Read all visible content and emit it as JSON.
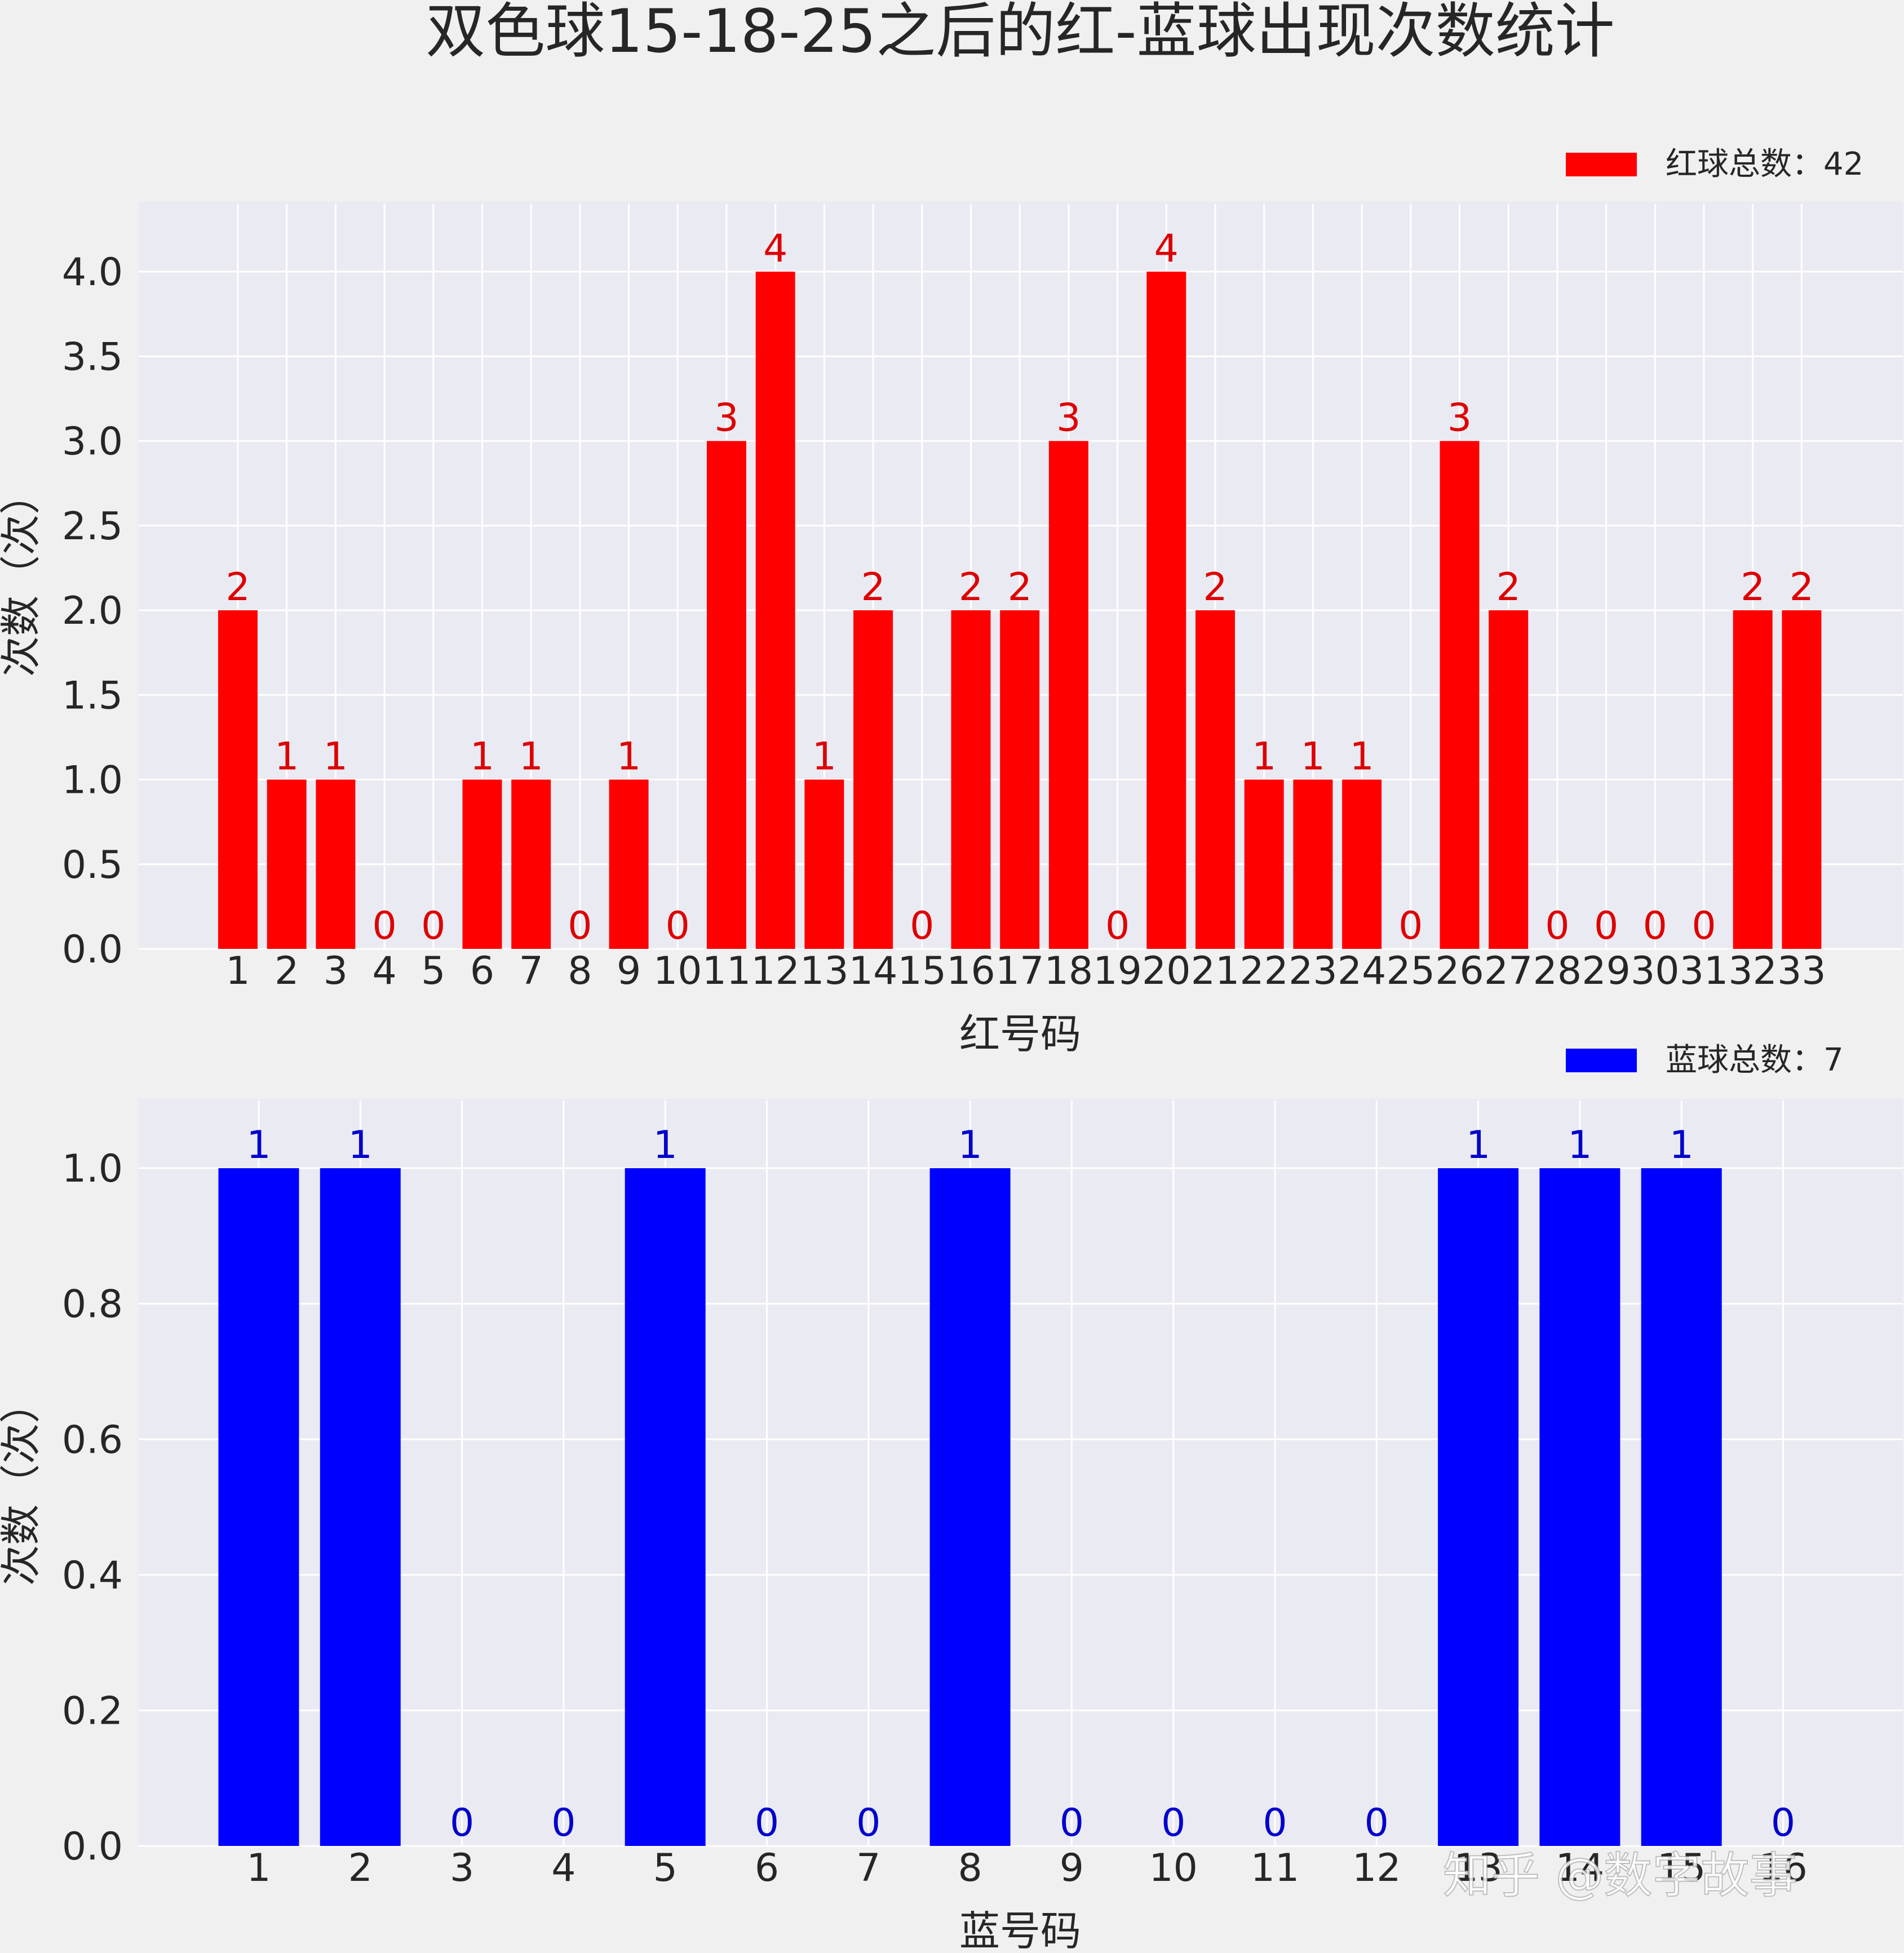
{
  "title": "双色球15-18-25之后的红-蓝球出现次数统计",
  "watermark": "知乎 @数字故事",
  "colors": {
    "page_bg": "#f0f0f0",
    "plot_bg": "#eaeaf2",
    "grid": "#ffffff",
    "red": "#ff0000",
    "red_label": "#dd0000",
    "blue": "#0000ff",
    "blue_label": "#0000cc",
    "text": "#262626"
  },
  "chart_data": [
    {
      "type": "bar",
      "title": "",
      "xlabel": "红号码",
      "ylabel": "次数（次）",
      "legend": {
        "label": "红球总数：42",
        "placement": "top-right"
      },
      "color": "#ff0000",
      "categories": [
        "1",
        "2",
        "3",
        "4",
        "5",
        "6",
        "7",
        "8",
        "9",
        "10",
        "11",
        "12",
        "13",
        "14",
        "15",
        "16",
        "17",
        "18",
        "19",
        "20",
        "21",
        "22",
        "23",
        "24",
        "25",
        "26",
        "27",
        "28",
        "29",
        "30",
        "31",
        "32",
        "33"
      ],
      "values": [
        2,
        1,
        1,
        0,
        0,
        1,
        1,
        0,
        1,
        0,
        3,
        4,
        1,
        2,
        0,
        2,
        2,
        3,
        0,
        4,
        2,
        1,
        1,
        1,
        0,
        3,
        2,
        0,
        0,
        0,
        0,
        2,
        2
      ],
      "yticks": [
        "0.0",
        "0.5",
        "1.0",
        "1.5",
        "2.0",
        "2.5",
        "3.0",
        "3.5",
        "4.0"
      ],
      "ytick_values": [
        0,
        0.5,
        1,
        1.5,
        2,
        2.5,
        3,
        3.5,
        4
      ],
      "ylim": [
        0,
        4.2
      ],
      "grid": true
    },
    {
      "type": "bar",
      "title": "",
      "xlabel": "蓝号码",
      "ylabel": "次数（次）",
      "legend": {
        "label": "蓝球总数：7",
        "placement": "top-right"
      },
      "color": "#0000ff",
      "categories": [
        "1",
        "2",
        "3",
        "4",
        "5",
        "6",
        "7",
        "8",
        "9",
        "10",
        "11",
        "12",
        "13",
        "14",
        "15",
        "16"
      ],
      "values": [
        1,
        1,
        0,
        0,
        1,
        0,
        0,
        1,
        0,
        0,
        0,
        0,
        1,
        1,
        1,
        0
      ],
      "yticks": [
        "0.0",
        "0.2",
        "0.4",
        "0.6",
        "0.8",
        "1.0"
      ],
      "ytick_values": [
        0,
        0.2,
        0.4,
        0.6,
        0.8,
        1.0
      ],
      "ylim": [
        0,
        1.05
      ],
      "grid": true
    }
  ]
}
